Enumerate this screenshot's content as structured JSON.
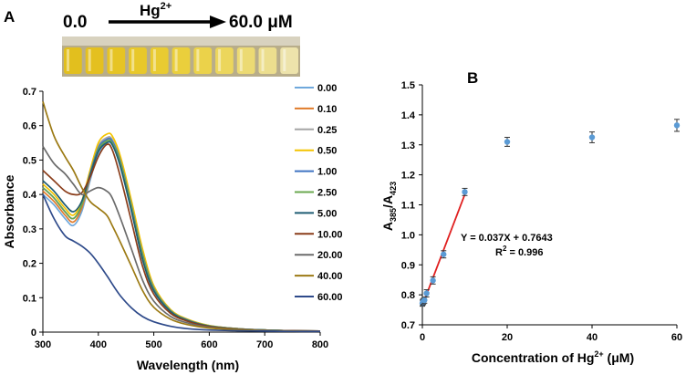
{
  "panel_a": {
    "label": "A",
    "gradient": {
      "start": "0.0",
      "symbol": "Hg",
      "charge": "2+",
      "end": "60.0 μM"
    },
    "vial_colors": [
      "#e2bf1e",
      "#e4c020",
      "#e6c424",
      "#e8c82a",
      "#e9cb31",
      "#eacf3c",
      "#ebd24a",
      "#ecd65c",
      "#ecda73",
      "#ecde8e",
      "#ede3ab"
    ]
  },
  "panel_b": {
    "label": "B"
  },
  "chart_data": [
    {
      "type": "line",
      "title": "",
      "xlabel": "Wavelength (nm)",
      "ylabel": "Absorbance",
      "xlim": [
        300,
        800
      ],
      "ylim": [
        0,
        0.7
      ],
      "xticks": [
        300,
        400,
        500,
        600,
        700,
        800
      ],
      "yticks": [
        0,
        0.1,
        0.2,
        0.3,
        0.4,
        0.5,
        0.6,
        0.7
      ],
      "x": [
        300,
        320,
        340,
        355,
        370,
        385,
        400,
        415,
        425,
        440,
        460,
        480,
        500,
        530,
        560,
        600,
        650,
        700,
        750,
        800
      ],
      "series": [
        {
          "name": "0.00",
          "color": "#6fa8dc",
          "values": [
            0.4,
            0.37,
            0.33,
            0.31,
            0.35,
            0.44,
            0.52,
            0.55,
            0.545,
            0.48,
            0.35,
            0.21,
            0.12,
            0.06,
            0.035,
            0.018,
            0.01,
            0.006,
            0.004,
            0.003
          ]
        },
        {
          "name": "0.10",
          "color": "#e07b2a",
          "values": [
            0.41,
            0.38,
            0.34,
            0.32,
            0.36,
            0.45,
            0.53,
            0.56,
            0.555,
            0.49,
            0.36,
            0.22,
            0.125,
            0.062,
            0.036,
            0.018,
            0.01,
            0.006,
            0.004,
            0.003
          ]
        },
        {
          "name": "0.25",
          "color": "#a5a5a5",
          "values": [
            0.42,
            0.39,
            0.35,
            0.33,
            0.37,
            0.46,
            0.54,
            0.565,
            0.56,
            0.5,
            0.37,
            0.23,
            0.13,
            0.064,
            0.037,
            0.019,
            0.01,
            0.006,
            0.004,
            0.003
          ]
        },
        {
          "name": "0.50",
          "color": "#f4c400",
          "values": [
            0.43,
            0.4,
            0.36,
            0.34,
            0.38,
            0.47,
            0.55,
            0.575,
            0.57,
            0.51,
            0.38,
            0.24,
            0.135,
            0.066,
            0.038,
            0.019,
            0.01,
            0.006,
            0.004,
            0.003
          ]
        },
        {
          "name": "1.00",
          "color": "#3f73c2",
          "values": [
            0.42,
            0.39,
            0.35,
            0.33,
            0.37,
            0.46,
            0.535,
            0.56,
            0.555,
            0.495,
            0.365,
            0.225,
            0.128,
            0.063,
            0.036,
            0.018,
            0.01,
            0.006,
            0.004,
            0.003
          ]
        },
        {
          "name": "2.50",
          "color": "#6aa84f",
          "values": [
            0.42,
            0.39,
            0.35,
            0.33,
            0.37,
            0.455,
            0.53,
            0.555,
            0.55,
            0.49,
            0.36,
            0.22,
            0.125,
            0.062,
            0.035,
            0.018,
            0.01,
            0.006,
            0.004,
            0.003
          ]
        },
        {
          "name": "5.00",
          "color": "#1f5c73",
          "values": [
            0.44,
            0.41,
            0.37,
            0.35,
            0.38,
            0.455,
            0.525,
            0.55,
            0.545,
            0.48,
            0.35,
            0.21,
            0.12,
            0.06,
            0.034,
            0.017,
            0.009,
            0.006,
            0.004,
            0.003
          ]
        },
        {
          "name": "10.00",
          "color": "#8a3d1a",
          "values": [
            0.47,
            0.44,
            0.41,
            0.4,
            0.405,
            0.45,
            0.51,
            0.545,
            0.53,
            0.45,
            0.32,
            0.19,
            0.11,
            0.055,
            0.032,
            0.016,
            0.009,
            0.005,
            0.004,
            0.003
          ]
        },
        {
          "name": "20.00",
          "color": "#6b6b6b",
          "values": [
            0.54,
            0.49,
            0.46,
            0.43,
            0.4,
            0.41,
            0.42,
            0.41,
            0.39,
            0.33,
            0.24,
            0.15,
            0.09,
            0.046,
            0.027,
            0.014,
            0.008,
            0.005,
            0.003,
            0.002
          ]
        },
        {
          "name": "40.00",
          "color": "#9c7a14",
          "values": [
            0.67,
            0.57,
            0.51,
            0.47,
            0.42,
            0.38,
            0.36,
            0.34,
            0.31,
            0.26,
            0.19,
            0.12,
            0.072,
            0.038,
            0.022,
            0.012,
            0.007,
            0.004,
            0.003,
            0.002
          ]
        },
        {
          "name": "60.00",
          "color": "#2e4a8a",
          "values": [
            0.4,
            0.33,
            0.28,
            0.265,
            0.25,
            0.23,
            0.2,
            0.165,
            0.14,
            0.105,
            0.07,
            0.045,
            0.03,
            0.017,
            0.01,
            0.006,
            0.004,
            0.003,
            0.002,
            0.002
          ]
        }
      ]
    },
    {
      "type": "scatter",
      "title": "",
      "ylabel_main": "A",
      "ylabel_sub1": "385",
      "ylabel_sep": "/A",
      "ylabel_sub2": "423",
      "xlabel_main": "Concentration of Hg",
      "xlabel_sup": "2+",
      "xlabel_unit": " (μM)",
      "xlim": [
        0,
        60
      ],
      "ylim": [
        0.7,
        1.5
      ],
      "xticks": [
        0,
        20,
        40,
        60
      ],
      "yticks": [
        0.7,
        0.8,
        0.9,
        1.0,
        1.1,
        1.2,
        1.3,
        1.4,
        1.5
      ],
      "point_color": "#5b9bd5",
      "points": [
        {
          "x": 0,
          "y": 0.772,
          "err": 0.01
        },
        {
          "x": 0.1,
          "y": 0.775,
          "err": 0.01
        },
        {
          "x": 0.25,
          "y": 0.778,
          "err": 0.01
        },
        {
          "x": 0.5,
          "y": 0.782,
          "err": 0.01
        },
        {
          "x": 1,
          "y": 0.805,
          "err": 0.012
        },
        {
          "x": 2.5,
          "y": 0.848,
          "err": 0.012
        },
        {
          "x": 5,
          "y": 0.935,
          "err": 0.012
        },
        {
          "x": 10,
          "y": 1.143,
          "err": 0.012
        },
        {
          "x": 20,
          "y": 1.31,
          "err": 0.015
        },
        {
          "x": 40,
          "y": 1.325,
          "err": 0.018
        },
        {
          "x": 60,
          "y": 1.365,
          "err": 0.02
        }
      ],
      "fit": {
        "slope": 0.037,
        "intercept": 0.7643,
        "x_range": [
          0,
          10
        ],
        "color": "#e02020"
      },
      "equation": "Y = 0.037X + 0.7643",
      "r2_main": "R",
      "r2_sup": "2",
      "r2_value": " = 0.996"
    }
  ]
}
